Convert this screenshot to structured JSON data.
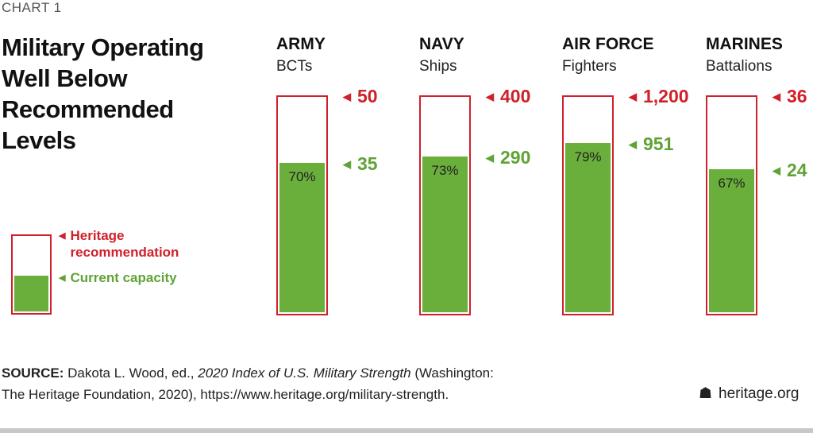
{
  "chart_label": "CHART 1",
  "title": "Military Operating Well Below Recommended Levels",
  "chart_data": {
    "type": "bar",
    "title": "Military Operating Well Below Recommended Levels",
    "categories": [
      "ARMY",
      "NAVY",
      "AIR FORCE",
      "MARINES"
    ],
    "subtitles": [
      "BCTs",
      "Ships",
      "Fighters",
      "Battalions"
    ],
    "series": [
      {
        "name": "Heritage recommendation",
        "values": [
          50,
          400,
          1200,
          36
        ],
        "labels": [
          "50",
          "400",
          "1,200",
          "36"
        ],
        "color": "#d0202a"
      },
      {
        "name": "Current capacity",
        "values": [
          35,
          290,
          951,
          24
        ],
        "labels": [
          "35",
          "290",
          "951",
          "24"
        ],
        "color": "#6aae3b"
      }
    ],
    "percent_labels": [
      "70%",
      "73%",
      "79%",
      "67%"
    ],
    "percent_values": [
      70,
      73,
      79,
      67
    ]
  },
  "legend": {
    "recommendation": "Heritage recommendation",
    "capacity": "Current capacity"
  },
  "source": {
    "label": "SOURCE:",
    "text1": " Dakota L. Wood, ed., ",
    "italic": "2020 Index of U.S. Military Strength",
    "text2": " (Washington:",
    "line2": "The Heritage Foundation, 2020), https://www.heritage.org/military-strength."
  },
  "brand": "heritage.org"
}
